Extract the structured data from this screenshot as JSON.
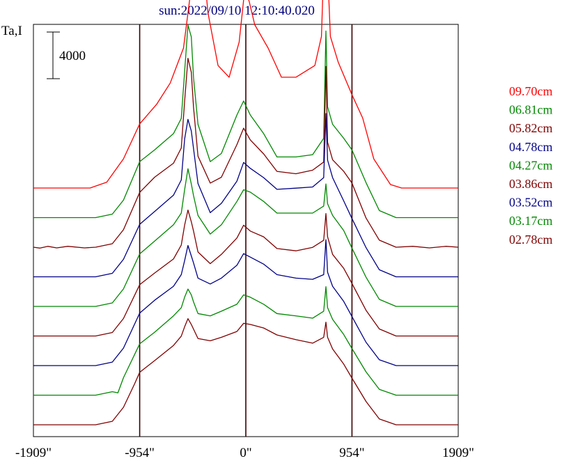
{
  "chart_data": {
    "type": "line",
    "title": "sun:2022/09/10 12:10:40.020",
    "ylabel": "Ta,I",
    "scale_bar_label": "4000",
    "x_ticks": [
      {
        "value": -1909,
        "label": "-1909\""
      },
      {
        "value": -954,
        "label": "-954\""
      },
      {
        "value": 0,
        "label": "0\""
      },
      {
        "value": 954,
        "label": "954\""
      },
      {
        "value": 1909,
        "label": "1909\""
      }
    ],
    "xlim": [
      -1909,
      1909
    ],
    "vlines": [
      -954,
      0,
      954
    ],
    "grid": false,
    "legend_placement": "right",
    "series": [
      {
        "name": "09.70cm",
        "color": "#ff0000",
        "offset": 0,
        "points": [
          [
            -1909,
            0
          ],
          [
            -1400,
            0
          ],
          [
            -1250,
            500
          ],
          [
            -1100,
            2500
          ],
          [
            -954,
            5500
          ],
          [
            -800,
            7200
          ],
          [
            -680,
            9000
          ],
          [
            -560,
            12000
          ],
          [
            -500,
            16500
          ],
          [
            -440,
            23500
          ],
          [
            -400,
            21000
          ],
          [
            -340,
            15000
          ],
          [
            -250,
            10500
          ],
          [
            -150,
            9500
          ],
          [
            -60,
            12500
          ],
          [
            -10,
            17000
          ],
          [
            30,
            16000
          ],
          [
            80,
            14000
          ],
          [
            200,
            12000
          ],
          [
            320,
            9500
          ],
          [
            450,
            9500
          ],
          [
            620,
            10500
          ],
          [
            680,
            13000
          ],
          [
            710,
            22000
          ],
          [
            730,
            20000
          ],
          [
            760,
            13000
          ],
          [
            830,
            10800
          ],
          [
            954,
            8000
          ],
          [
            1050,
            6000
          ],
          [
            1150,
            2500
          ],
          [
            1300,
            300
          ],
          [
            1400,
            0
          ],
          [
            1909,
            0
          ]
        ]
      },
      {
        "name": "06.81cm",
        "color": "#008800",
        "offset": 1,
        "points": [
          [
            -1909,
            0
          ],
          [
            -1350,
            0
          ],
          [
            -1200,
            300
          ],
          [
            -1100,
            1500
          ],
          [
            -954,
            4800
          ],
          [
            -820,
            5800
          ],
          [
            -650,
            7200
          ],
          [
            -580,
            8500
          ],
          [
            -550,
            12500
          ],
          [
            -520,
            16500
          ],
          [
            -490,
            15500
          ],
          [
            -470,
            12000
          ],
          [
            -430,
            8000
          ],
          [
            -320,
            4800
          ],
          [
            -220,
            5500
          ],
          [
            -80,
            8800
          ],
          [
            -20,
            10000
          ],
          [
            40,
            8800
          ],
          [
            160,
            7200
          ],
          [
            280,
            5200
          ],
          [
            450,
            5200
          ],
          [
            600,
            5400
          ],
          [
            700,
            6800
          ],
          [
            720,
            16000
          ],
          [
            735,
            9500
          ],
          [
            780,
            8000
          ],
          [
            880,
            6800
          ],
          [
            954,
            5800
          ],
          [
            1080,
            3000
          ],
          [
            1200,
            600
          ],
          [
            1350,
            0
          ],
          [
            1909,
            0
          ]
        ]
      },
      {
        "name": "05.82cm",
        "color": "#800000",
        "offset": 2,
        "points": [
          [
            -1909,
            0
          ],
          [
            -1850,
            -80
          ],
          [
            -1780,
            80
          ],
          [
            -1700,
            -60
          ],
          [
            -1600,
            80
          ],
          [
            -1450,
            -60
          ],
          [
            -1350,
            0
          ],
          [
            -1200,
            300
          ],
          [
            -1100,
            1500
          ],
          [
            -954,
            4700
          ],
          [
            -820,
            6000
          ],
          [
            -650,
            7200
          ],
          [
            -580,
            8500
          ],
          [
            -550,
            12500
          ],
          [
            -520,
            16200
          ],
          [
            -490,
            15000
          ],
          [
            -470,
            12000
          ],
          [
            -430,
            7800
          ],
          [
            -320,
            5500
          ],
          [
            -220,
            6000
          ],
          [
            -80,
            8800
          ],
          [
            -20,
            10200
          ],
          [
            40,
            9200
          ],
          [
            160,
            8000
          ],
          [
            280,
            6500
          ],
          [
            450,
            6300
          ],
          [
            600,
            6600
          ],
          [
            700,
            7300
          ],
          [
            720,
            15500
          ],
          [
            735,
            9000
          ],
          [
            780,
            7500
          ],
          [
            880,
            6500
          ],
          [
            954,
            5500
          ],
          [
            1080,
            2500
          ],
          [
            1200,
            600
          ],
          [
            1350,
            0
          ],
          [
            1500,
            80
          ],
          [
            1650,
            -60
          ],
          [
            1800,
            80
          ],
          [
            1909,
            0
          ]
        ]
      },
      {
        "name": "04.78cm",
        "color": "#000088",
        "offset": 3,
        "points": [
          [
            -1909,
            0
          ],
          [
            -1350,
            0
          ],
          [
            -1200,
            300
          ],
          [
            -1100,
            1500
          ],
          [
            -954,
            4500
          ],
          [
            -820,
            5600
          ],
          [
            -650,
            7000
          ],
          [
            -580,
            8300
          ],
          [
            -550,
            11800
          ],
          [
            -520,
            13500
          ],
          [
            -490,
            12500
          ],
          [
            -470,
            11000
          ],
          [
            -430,
            8000
          ],
          [
            -320,
            5500
          ],
          [
            -220,
            6300
          ],
          [
            -80,
            8200
          ],
          [
            -20,
            9800
          ],
          [
            40,
            9300
          ],
          [
            160,
            8500
          ],
          [
            280,
            7500
          ],
          [
            450,
            7600
          ],
          [
            600,
            7700
          ],
          [
            700,
            8500
          ],
          [
            720,
            14000
          ],
          [
            735,
            10000
          ],
          [
            780,
            8500
          ],
          [
            880,
            6500
          ],
          [
            954,
            5000
          ],
          [
            1080,
            2500
          ],
          [
            1200,
            600
          ],
          [
            1350,
            0
          ],
          [
            1909,
            0
          ]
        ]
      },
      {
        "name": "04.27cm",
        "color": "#008800",
        "offset": 4,
        "points": [
          [
            -1909,
            0
          ],
          [
            -1350,
            0
          ],
          [
            -1200,
            300
          ],
          [
            -1100,
            1500
          ],
          [
            -954,
            4500
          ],
          [
            -820,
            5600
          ],
          [
            -650,
            7000
          ],
          [
            -580,
            8000
          ],
          [
            -550,
            10000
          ],
          [
            -520,
            11800
          ],
          [
            -490,
            10500
          ],
          [
            -470,
            9500
          ],
          [
            -430,
            7800
          ],
          [
            -320,
            6200
          ],
          [
            -220,
            7000
          ],
          [
            -80,
            9000
          ],
          [
            -20,
            10000
          ],
          [
            40,
            9800
          ],
          [
            160,
            9000
          ],
          [
            280,
            8000
          ],
          [
            450,
            8000
          ],
          [
            600,
            8000
          ],
          [
            700,
            8600
          ],
          [
            720,
            10500
          ],
          [
            735,
            8800
          ],
          [
            780,
            7800
          ],
          [
            880,
            6500
          ],
          [
            954,
            5000
          ],
          [
            1080,
            2500
          ],
          [
            1200,
            600
          ],
          [
            1350,
            0
          ],
          [
            1909,
            0
          ]
        ]
      },
      {
        "name": "03.86cm",
        "color": "#800000",
        "offset": 5,
        "points": [
          [
            -1909,
            0
          ],
          [
            -1350,
            0
          ],
          [
            -1200,
            300
          ],
          [
            -1100,
            1500
          ],
          [
            -954,
            4400
          ],
          [
            -820,
            5400
          ],
          [
            -650,
            6600
          ],
          [
            -580,
            7800
          ],
          [
            -550,
            9500
          ],
          [
            -520,
            10800
          ],
          [
            -490,
            9800
          ],
          [
            -470,
            9000
          ],
          [
            -430,
            7200
          ],
          [
            -320,
            6200
          ],
          [
            -220,
            7000
          ],
          [
            -80,
            8400
          ],
          [
            -20,
            9500
          ],
          [
            40,
            9000
          ],
          [
            160,
            8500
          ],
          [
            280,
            7500
          ],
          [
            450,
            7300
          ],
          [
            600,
            7600
          ],
          [
            700,
            8200
          ],
          [
            720,
            10500
          ],
          [
            735,
            8500
          ],
          [
            780,
            7000
          ],
          [
            880,
            5800
          ],
          [
            954,
            4500
          ],
          [
            1080,
            2200
          ],
          [
            1200,
            600
          ],
          [
            1350,
            0
          ],
          [
            1909,
            0
          ]
        ]
      },
      {
        "name": "03.52cm",
        "color": "#000088",
        "offset": 6,
        "points": [
          [
            -1909,
            0
          ],
          [
            -1350,
            0
          ],
          [
            -1200,
            300
          ],
          [
            -1100,
            1500
          ],
          [
            -954,
            4500
          ],
          [
            -820,
            5600
          ],
          [
            -650,
            6800
          ],
          [
            -580,
            7800
          ],
          [
            -550,
            9000
          ],
          [
            -520,
            10300
          ],
          [
            -490,
            9400
          ],
          [
            -470,
            8800
          ],
          [
            -430,
            7500
          ],
          [
            -320,
            7000
          ],
          [
            -220,
            7500
          ],
          [
            -80,
            8600
          ],
          [
            -20,
            9600
          ],
          [
            40,
            9300
          ],
          [
            160,
            8700
          ],
          [
            280,
            7800
          ],
          [
            450,
            7500
          ],
          [
            600,
            7400
          ],
          [
            700,
            7800
          ],
          [
            720,
            10800
          ],
          [
            735,
            8000
          ],
          [
            780,
            6800
          ],
          [
            880,
            5500
          ],
          [
            954,
            4200
          ],
          [
            1080,
            2000
          ],
          [
            1200,
            500
          ],
          [
            1350,
            0
          ],
          [
            1909,
            0
          ]
        ]
      },
      {
        "name": "03.17cm",
        "color": "#008800",
        "offset": 7,
        "points": [
          [
            -1909,
            0
          ],
          [
            -1350,
            0
          ],
          [
            -1200,
            300
          ],
          [
            -1150,
            200
          ],
          [
            -1100,
            1500
          ],
          [
            -954,
            4400
          ],
          [
            -820,
            5400
          ],
          [
            -650,
            6800
          ],
          [
            -580,
            7500
          ],
          [
            -550,
            8400
          ],
          [
            -520,
            9100
          ],
          [
            -490,
            8600
          ],
          [
            -470,
            8000
          ],
          [
            -430,
            7000
          ],
          [
            -320,
            6800
          ],
          [
            -220,
            7200
          ],
          [
            -80,
            7800
          ],
          [
            -20,
            8600
          ],
          [
            40,
            8400
          ],
          [
            160,
            7800
          ],
          [
            280,
            7000
          ],
          [
            450,
            6800
          ],
          [
            600,
            6600
          ],
          [
            700,
            7200
          ],
          [
            720,
            9300
          ],
          [
            735,
            7500
          ],
          [
            780,
            6500
          ],
          [
            880,
            5200
          ],
          [
            954,
            4000
          ],
          [
            1080,
            2000
          ],
          [
            1200,
            500
          ],
          [
            1350,
            0
          ],
          [
            1909,
            0
          ]
        ]
      },
      {
        "name": "02.78cm",
        "color": "#800000",
        "offset": 8,
        "points": [
          [
            -1909,
            0
          ],
          [
            -1350,
            0
          ],
          [
            -1200,
            300
          ],
          [
            -1100,
            1500
          ],
          [
            -1000,
            3500
          ],
          [
            -954,
            4500
          ],
          [
            -820,
            5500
          ],
          [
            -650,
            6800
          ],
          [
            -580,
            7600
          ],
          [
            -550,
            8400
          ],
          [
            -520,
            9100
          ],
          [
            -490,
            8600
          ],
          [
            -470,
            8200
          ],
          [
            -430,
            7400
          ],
          [
            -320,
            7200
          ],
          [
            -220,
            7500
          ],
          [
            -80,
            8000
          ],
          [
            -20,
            8700
          ],
          [
            40,
            8600
          ],
          [
            160,
            8300
          ],
          [
            280,
            7700
          ],
          [
            450,
            7300
          ],
          [
            600,
            7000
          ],
          [
            700,
            7500
          ],
          [
            720,
            8800
          ],
          [
            735,
            7500
          ],
          [
            780,
            6500
          ],
          [
            880,
            5200
          ],
          [
            954,
            4000
          ],
          [
            1080,
            2000
          ],
          [
            1200,
            500
          ],
          [
            1350,
            0
          ],
          [
            1909,
            0
          ]
        ]
      }
    ]
  }
}
